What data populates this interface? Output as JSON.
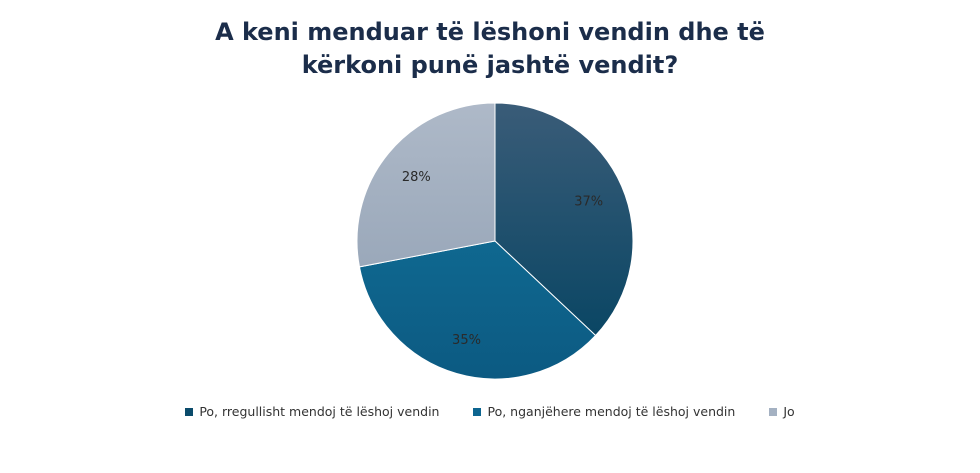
{
  "chart_data": {
    "type": "pie",
    "title_lines": [
      "A keni menduar të lëshoni vendin dhe të",
      "kërkoni punë jashtë vendit?"
    ],
    "slices": [
      {
        "label": "Po, rregullisht mendoj të lëshoj vendin",
        "value": 37,
        "display": "37%",
        "color": "#0b4b6b"
      },
      {
        "label": "Po, nganjëhere mendoj të lëshoj vendin",
        "value": 35,
        "display": "35%",
        "color": "#0d6590"
      },
      {
        "label": "Jo",
        "value": 28,
        "display": "28%",
        "color": "#a4b1c2"
      }
    ],
    "legend_position": "bottom"
  }
}
